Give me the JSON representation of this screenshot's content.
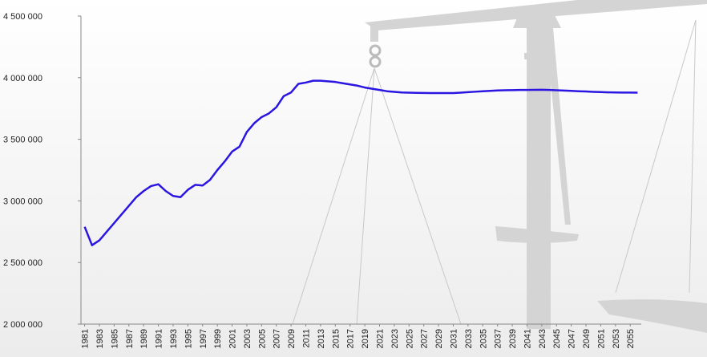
{
  "chart_data": {
    "type": "line",
    "x": [
      1981,
      1982,
      1983,
      1984,
      1985,
      1986,
      1987,
      1988,
      1989,
      1990,
      1991,
      1992,
      1993,
      1994,
      1995,
      1996,
      1997,
      1998,
      1999,
      2000,
      2001,
      2002,
      2003,
      2004,
      2005,
      2006,
      2007,
      2008,
      2009,
      2010,
      2011,
      2012,
      2013,
      2014,
      2015,
      2016,
      2017,
      2018,
      2019,
      2020,
      2021,
      2022,
      2023,
      2024,
      2025,
      2026,
      2027,
      2028,
      2029,
      2030,
      2031,
      2032,
      2033,
      2034,
      2035,
      2036,
      2037,
      2038,
      2039,
      2040,
      2041,
      2042,
      2043,
      2044,
      2045,
      2046,
      2047,
      2048,
      2049,
      2050,
      2051,
      2052,
      2053,
      2054,
      2055,
      2056
    ],
    "series": [
      {
        "color": "#2a16e0",
        "values": [
          2790000,
          2640000,
          2680000,
          2750000,
          2820000,
          2890000,
          2960000,
          3030000,
          3080000,
          3120000,
          3135000,
          3080000,
          3040000,
          3030000,
          3090000,
          3130000,
          3125000,
          3170000,
          3250000,
          3320000,
          3400000,
          3440000,
          3560000,
          3630000,
          3680000,
          3710000,
          3760000,
          3850000,
          3880000,
          3950000,
          3960000,
          3975000,
          3975000,
          3970000,
          3965000,
          3955000,
          3945000,
          3935000,
          3920000,
          3910000,
          3900000,
          3890000,
          3885000,
          3880000,
          3878000,
          3877000,
          3876000,
          3875000,
          3875000,
          3875000,
          3875000,
          3878000,
          3882000,
          3886000,
          3890000,
          3893000,
          3896000,
          3898000,
          3899000,
          3900000,
          3900000,
          3901000,
          3902000,
          3900000,
          3898000,
          3895000,
          3893000,
          3890000,
          3888000,
          3885000,
          3883000,
          3881000,
          3880000,
          3879000,
          3879000,
          3878000
        ]
      }
    ],
    "xlim": [
      1980.5,
      2056.5
    ],
    "xticks": [
      1981,
      1983,
      1985,
      1987,
      1989,
      1991,
      1993,
      1995,
      1997,
      1999,
      2001,
      2003,
      2005,
      2007,
      2009,
      2011,
      2013,
      2015,
      2017,
      2019,
      2021,
      2023,
      2025,
      2027,
      2029,
      2031,
      2033,
      2035,
      2037,
      2039,
      2041,
      2043,
      2045,
      2047,
      2049,
      2051,
      2053,
      2055
    ],
    "ylim": [
      2000000,
      4500000
    ],
    "yticks": [
      {
        "value": 2000000,
        "label": "2 000 000"
      },
      {
        "value": 2500000,
        "label": "2 500 000"
      },
      {
        "value": 3000000,
        "label": "3 000 000"
      },
      {
        "value": 3500000,
        "label": "3 500 000"
      },
      {
        "value": 4000000,
        "label": "4 000 000"
      },
      {
        "value": 4500000,
        "label": "4 500 000"
      }
    ]
  }
}
